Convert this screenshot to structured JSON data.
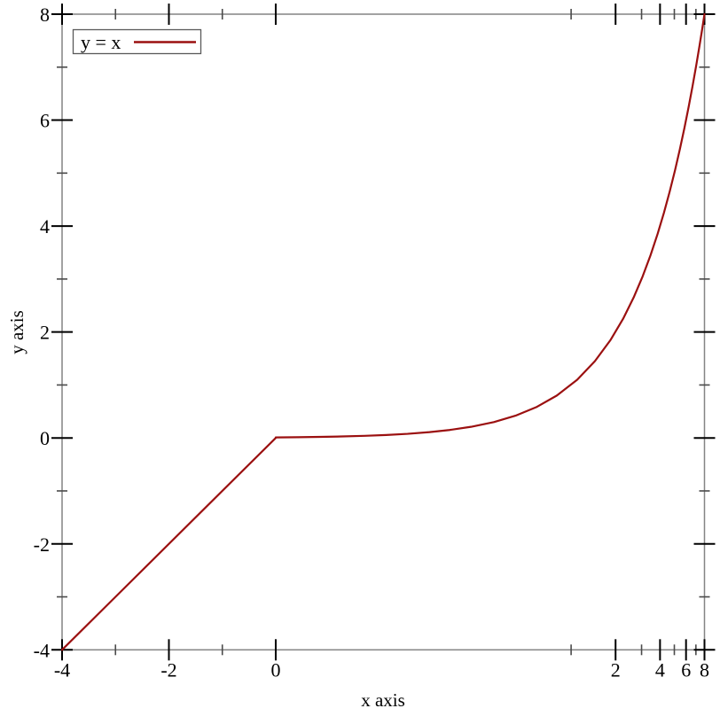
{
  "figure": {
    "description": "Plot of the identity function y = x on a piecewise-transformed x axis: linear for x in [-4,0], logarithmic for x in [0.01,8]."
  },
  "chart_data": {
    "type": "line",
    "title": "",
    "xlabel": "x axis",
    "ylabel": "y axis",
    "x_range": [
      -4,
      8
    ],
    "y_range": [
      -4,
      8
    ],
    "grid": false,
    "x_scale_note": "x axis is linear from -4 to 0 (left third) and logarithmic from 0.01 to 8 (right two thirds)",
    "x_transform": {
      "segments": [
        {
          "scale": "linear",
          "x0": -4,
          "x1": 0,
          "f0": 0,
          "f1": 0.3326
        },
        {
          "scale": "log",
          "x0": 0.01,
          "x1": 8,
          "f0": 0.3326,
          "f1": 1
        }
      ]
    },
    "x_ticks": {
      "major": [
        -4,
        -2,
        0,
        2,
        4,
        6,
        8
      ],
      "major_labels": [
        "-4",
        "-2",
        "0",
        "2",
        "4",
        "6",
        "8"
      ],
      "minor": [
        -3,
        -1,
        1,
        3,
        5,
        7
      ]
    },
    "y_ticks": {
      "major": [
        -4,
        -2,
        0,
        2,
        4,
        6,
        8
      ],
      "major_labels": [
        "-4",
        "-2",
        "0",
        "2",
        "4",
        "6",
        "8"
      ],
      "minor": [
        -3,
        -1,
        1,
        3,
        5,
        7
      ]
    },
    "legend": {
      "position": "top-left",
      "entries": [
        {
          "label": "y = x",
          "color": "#9b1010"
        }
      ]
    },
    "series": [
      {
        "name": "y = x",
        "function": "y = x",
        "color": "#9b1010",
        "points": [
          [
            -4,
            -4
          ],
          [
            0,
            0
          ],
          [
            0.01,
            0.01
          ],
          [
            0.014,
            0.014
          ],
          [
            0.02,
            0.02
          ],
          [
            0.028,
            0.028
          ],
          [
            0.04,
            0.04
          ],
          [
            0.056,
            0.056
          ],
          [
            0.078,
            0.078
          ],
          [
            0.11,
            0.11
          ],
          [
            0.15,
            0.15
          ],
          [
            0.21,
            0.21
          ],
          [
            0.3,
            0.3
          ],
          [
            0.42,
            0.42
          ],
          [
            0.58,
            0.58
          ],
          [
            0.8,
            0.8
          ],
          [
            1.1,
            1.1
          ],
          [
            1.45,
            1.45
          ],
          [
            1.85,
            1.85
          ],
          [
            2.25,
            2.25
          ],
          [
            2.65,
            2.65
          ],
          [
            3.05,
            3.05
          ],
          [
            3.45,
            3.45
          ],
          [
            3.85,
            3.85
          ],
          [
            4.25,
            4.25
          ],
          [
            4.65,
            4.65
          ],
          [
            5.05,
            5.05
          ],
          [
            5.45,
            5.45
          ],
          [
            5.85,
            5.85
          ],
          [
            6.25,
            6.25
          ],
          [
            6.65,
            6.65
          ],
          [
            7.05,
            7.05
          ],
          [
            7.4,
            7.4
          ],
          [
            7.7,
            7.7
          ],
          [
            8,
            8
          ]
        ]
      }
    ]
  },
  "colors": {
    "background": "#ffffff",
    "plot_border": "#848484",
    "major_tick": "#000000",
    "minor_tick": "#4a4a4a",
    "curve": "#9b1010",
    "legend_border": "#5a5a5a",
    "legend_background": "#ffffff",
    "text": "#000000"
  }
}
